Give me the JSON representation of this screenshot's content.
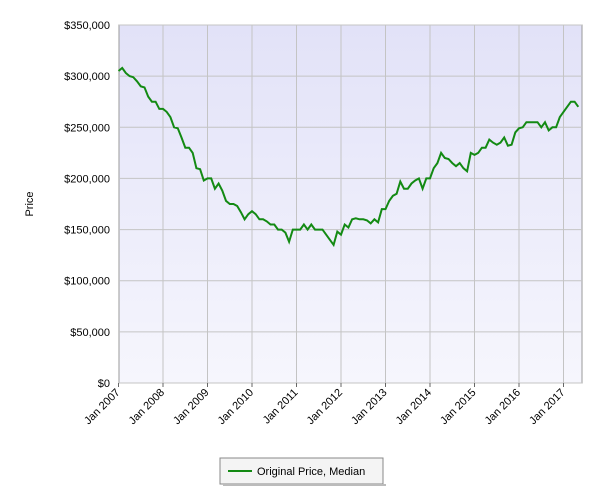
{
  "chart_data": {
    "type": "line",
    "y_label": "Price",
    "categories": [
      "Jan 2007",
      "Feb 2007",
      "Mar 2007",
      "Apr 2007",
      "May 2007",
      "Jun 2007",
      "Jul 2007",
      "Aug 2007",
      "Sep 2007",
      "Oct 2007",
      "Nov 2007",
      "Dec 2007",
      "Jan 2008",
      "Feb 2008",
      "Mar 2008",
      "Apr 2008",
      "May 2008",
      "Jun 2008",
      "Jul 2008",
      "Aug 2008",
      "Sep 2008",
      "Oct 2008",
      "Nov 2008",
      "Dec 2008",
      "Jan 2009",
      "Feb 2009",
      "Mar 2009",
      "Apr 2009",
      "May 2009",
      "Jun 2009",
      "Jul 2009",
      "Aug 2009",
      "Sep 2009",
      "Oct 2009",
      "Nov 2009",
      "Dec 2009",
      "Jan 2010",
      "Feb 2010",
      "Mar 2010",
      "Apr 2010",
      "May 2010",
      "Jun 2010",
      "Jul 2010",
      "Aug 2010",
      "Sep 2010",
      "Oct 2010",
      "Nov 2010",
      "Dec 2010",
      "Jan 2011",
      "Feb 2011",
      "Mar 2011",
      "Apr 2011",
      "May 2011",
      "Jun 2011",
      "Jul 2011",
      "Aug 2011",
      "Sep 2011",
      "Oct 2011",
      "Nov 2011",
      "Dec 2011",
      "Jan 2012",
      "Feb 2012",
      "Mar 2012",
      "Apr 2012",
      "May 2012",
      "Jun 2012",
      "Jul 2012",
      "Aug 2012",
      "Sep 2012",
      "Oct 2012",
      "Nov 2012",
      "Dec 2012",
      "Jan 2013",
      "Feb 2013",
      "Mar 2013",
      "Apr 2013",
      "May 2013",
      "Jun 2013",
      "Jul 2013",
      "Aug 2013",
      "Sep 2013",
      "Oct 2013",
      "Nov 2013",
      "Dec 2013",
      "Jan 2014",
      "Feb 2014",
      "Mar 2014",
      "Apr 2014",
      "May 2014",
      "Jun 2014",
      "Jul 2014",
      "Aug 2014",
      "Sep 2014",
      "Oct 2014",
      "Nov 2014",
      "Dec 2014",
      "Jan 2015",
      "Feb 2015",
      "Mar 2015",
      "Apr 2015",
      "May 2015",
      "Jun 2015",
      "Jul 2015",
      "Aug 2015",
      "Sep 2015",
      "Oct 2015",
      "Nov 2015",
      "Dec 2015",
      "Jan 2016",
      "Feb 2016",
      "Mar 2016",
      "Apr 2016",
      "May 2016",
      "Jun 2016",
      "Jul 2016",
      "Aug 2016",
      "Sep 2016",
      "Oct 2016",
      "Nov 2016",
      "Dec 2016",
      "Jan 2017",
      "Feb 2017",
      "Mar 2017",
      "Apr 2017",
      "May 2017"
    ],
    "series": [
      {
        "name": "Original Price, Median",
        "color": "#138a13",
        "values": [
          305000,
          308000,
          303000,
          300000,
          299000,
          295000,
          290000,
          289000,
          280000,
          275000,
          275000,
          268000,
          268000,
          265000,
          260000,
          250000,
          249000,
          240000,
          230000,
          230000,
          225000,
          210000,
          209000,
          198000,
          200000,
          200000,
          190000,
          195000,
          188000,
          178000,
          175000,
          175000,
          173000,
          167000,
          160000,
          165000,
          168000,
          165000,
          160000,
          160000,
          158000,
          155000,
          155000,
          150000,
          150000,
          147000,
          138000,
          150000,
          150000,
          150000,
          155000,
          150000,
          155000,
          150000,
          150000,
          150000,
          145000,
          140000,
          135000,
          148000,
          145000,
          155000,
          152000,
          160000,
          161000,
          160000,
          160000,
          159000,
          156000,
          160000,
          157000,
          170000,
          170000,
          178000,
          183000,
          185000,
          197000,
          190000,
          190000,
          195000,
          198000,
          200000,
          190000,
          200000,
          200000,
          210000,
          215000,
          225000,
          220000,
          219000,
          215000,
          212000,
          215000,
          210000,
          207000,
          225000,
          223000,
          225000,
          230000,
          230000,
          238000,
          235000,
          233000,
          235000,
          240000,
          232000,
          233000,
          245000,
          249000,
          250000,
          255000,
          255000,
          255000,
          255000,
          250000,
          255000,
          247000,
          250000,
          250000,
          260000,
          265000,
          270000,
          275000,
          275000,
          270000
        ]
      }
    ],
    "xticks": [
      "Jan 2007",
      "Jan 2008",
      "Jan 2009",
      "Jan 2010",
      "Jan 2011",
      "Jan 2012",
      "Jan 2013",
      "Jan 2014",
      "Jan 2015",
      "Jan 2016",
      "Jan 2017"
    ],
    "ylim": [
      0,
      350000
    ],
    "yticks": [
      {
        "value": 0,
        "label": "$0"
      },
      {
        "value": 50000,
        "label": "$50,000"
      },
      {
        "value": 100000,
        "label": "$100,000"
      },
      {
        "value": 150000,
        "label": "$150,000"
      },
      {
        "value": 200000,
        "label": "$200,000"
      },
      {
        "value": 250000,
        "label": "$250,000"
      },
      {
        "value": 300000,
        "label": "$300,000"
      },
      {
        "value": 350000,
        "label": "$350,000"
      }
    ],
    "grid": true
  }
}
